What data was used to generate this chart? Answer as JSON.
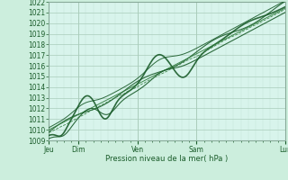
{
  "title": "",
  "xlabel": "Pression niveau de la mer( hPa )",
  "ylim": [
    1009,
    1022
  ],
  "xlim": [
    0,
    96
  ],
  "yticks": [
    1009,
    1010,
    1011,
    1012,
    1013,
    1014,
    1015,
    1016,
    1017,
    1018,
    1019,
    1020,
    1021,
    1022
  ],
  "xtick_positions": [
    0,
    12,
    36,
    60,
    96
  ],
  "xtick_labels": [
    "Jeu",
    "Dim",
    "Ven",
    "Sam",
    "Lun"
  ],
  "bg_color": "#cceedd",
  "plot_bg_color": "#d8f4ec",
  "grid_major_color": "#aaccbb",
  "grid_minor_color": "#c4e4d8",
  "line_color_dark": "#1a5c2a",
  "line_color_mid": "#2d7a3a",
  "border_color": "#88aa99",
  "tick_color": "#1a5c2a",
  "label_color": "#1a5c2a"
}
